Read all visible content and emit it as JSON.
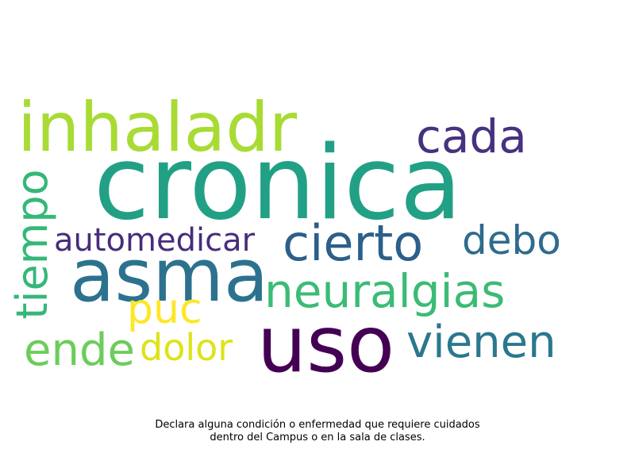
{
  "words": [
    {
      "text": "cronica",
      "color": "#22a085"
    },
    {
      "text": "inhaladr",
      "color": "#a8db34"
    },
    {
      "text": "cada",
      "color": "#46327e"
    },
    {
      "text": "tiempo",
      "color": "#35b779"
    },
    {
      "text": "automedicar",
      "color": "#472d7b"
    },
    {
      "text": "cierto",
      "color": "#2c5f8a"
    },
    {
      "text": "debo",
      "color": "#2f6b8e"
    },
    {
      "text": "asma",
      "color": "#2c728e"
    },
    {
      "text": "neuralgias",
      "color": "#3bbb75"
    },
    {
      "text": "puc",
      "color": "#fde725"
    },
    {
      "text": "uso",
      "color": "#440154"
    },
    {
      "text": "ende",
      "color": "#6ccd5a"
    },
    {
      "text": "dolor",
      "color": "#dde318"
    },
    {
      "text": "vienen",
      "color": "#2a788e"
    }
  ],
  "caption": {
    "line1": "Declara alguna condición o enfermedad que requiere cuidados",
    "line2": "dentro del Campus o en la sala de clases."
  }
}
